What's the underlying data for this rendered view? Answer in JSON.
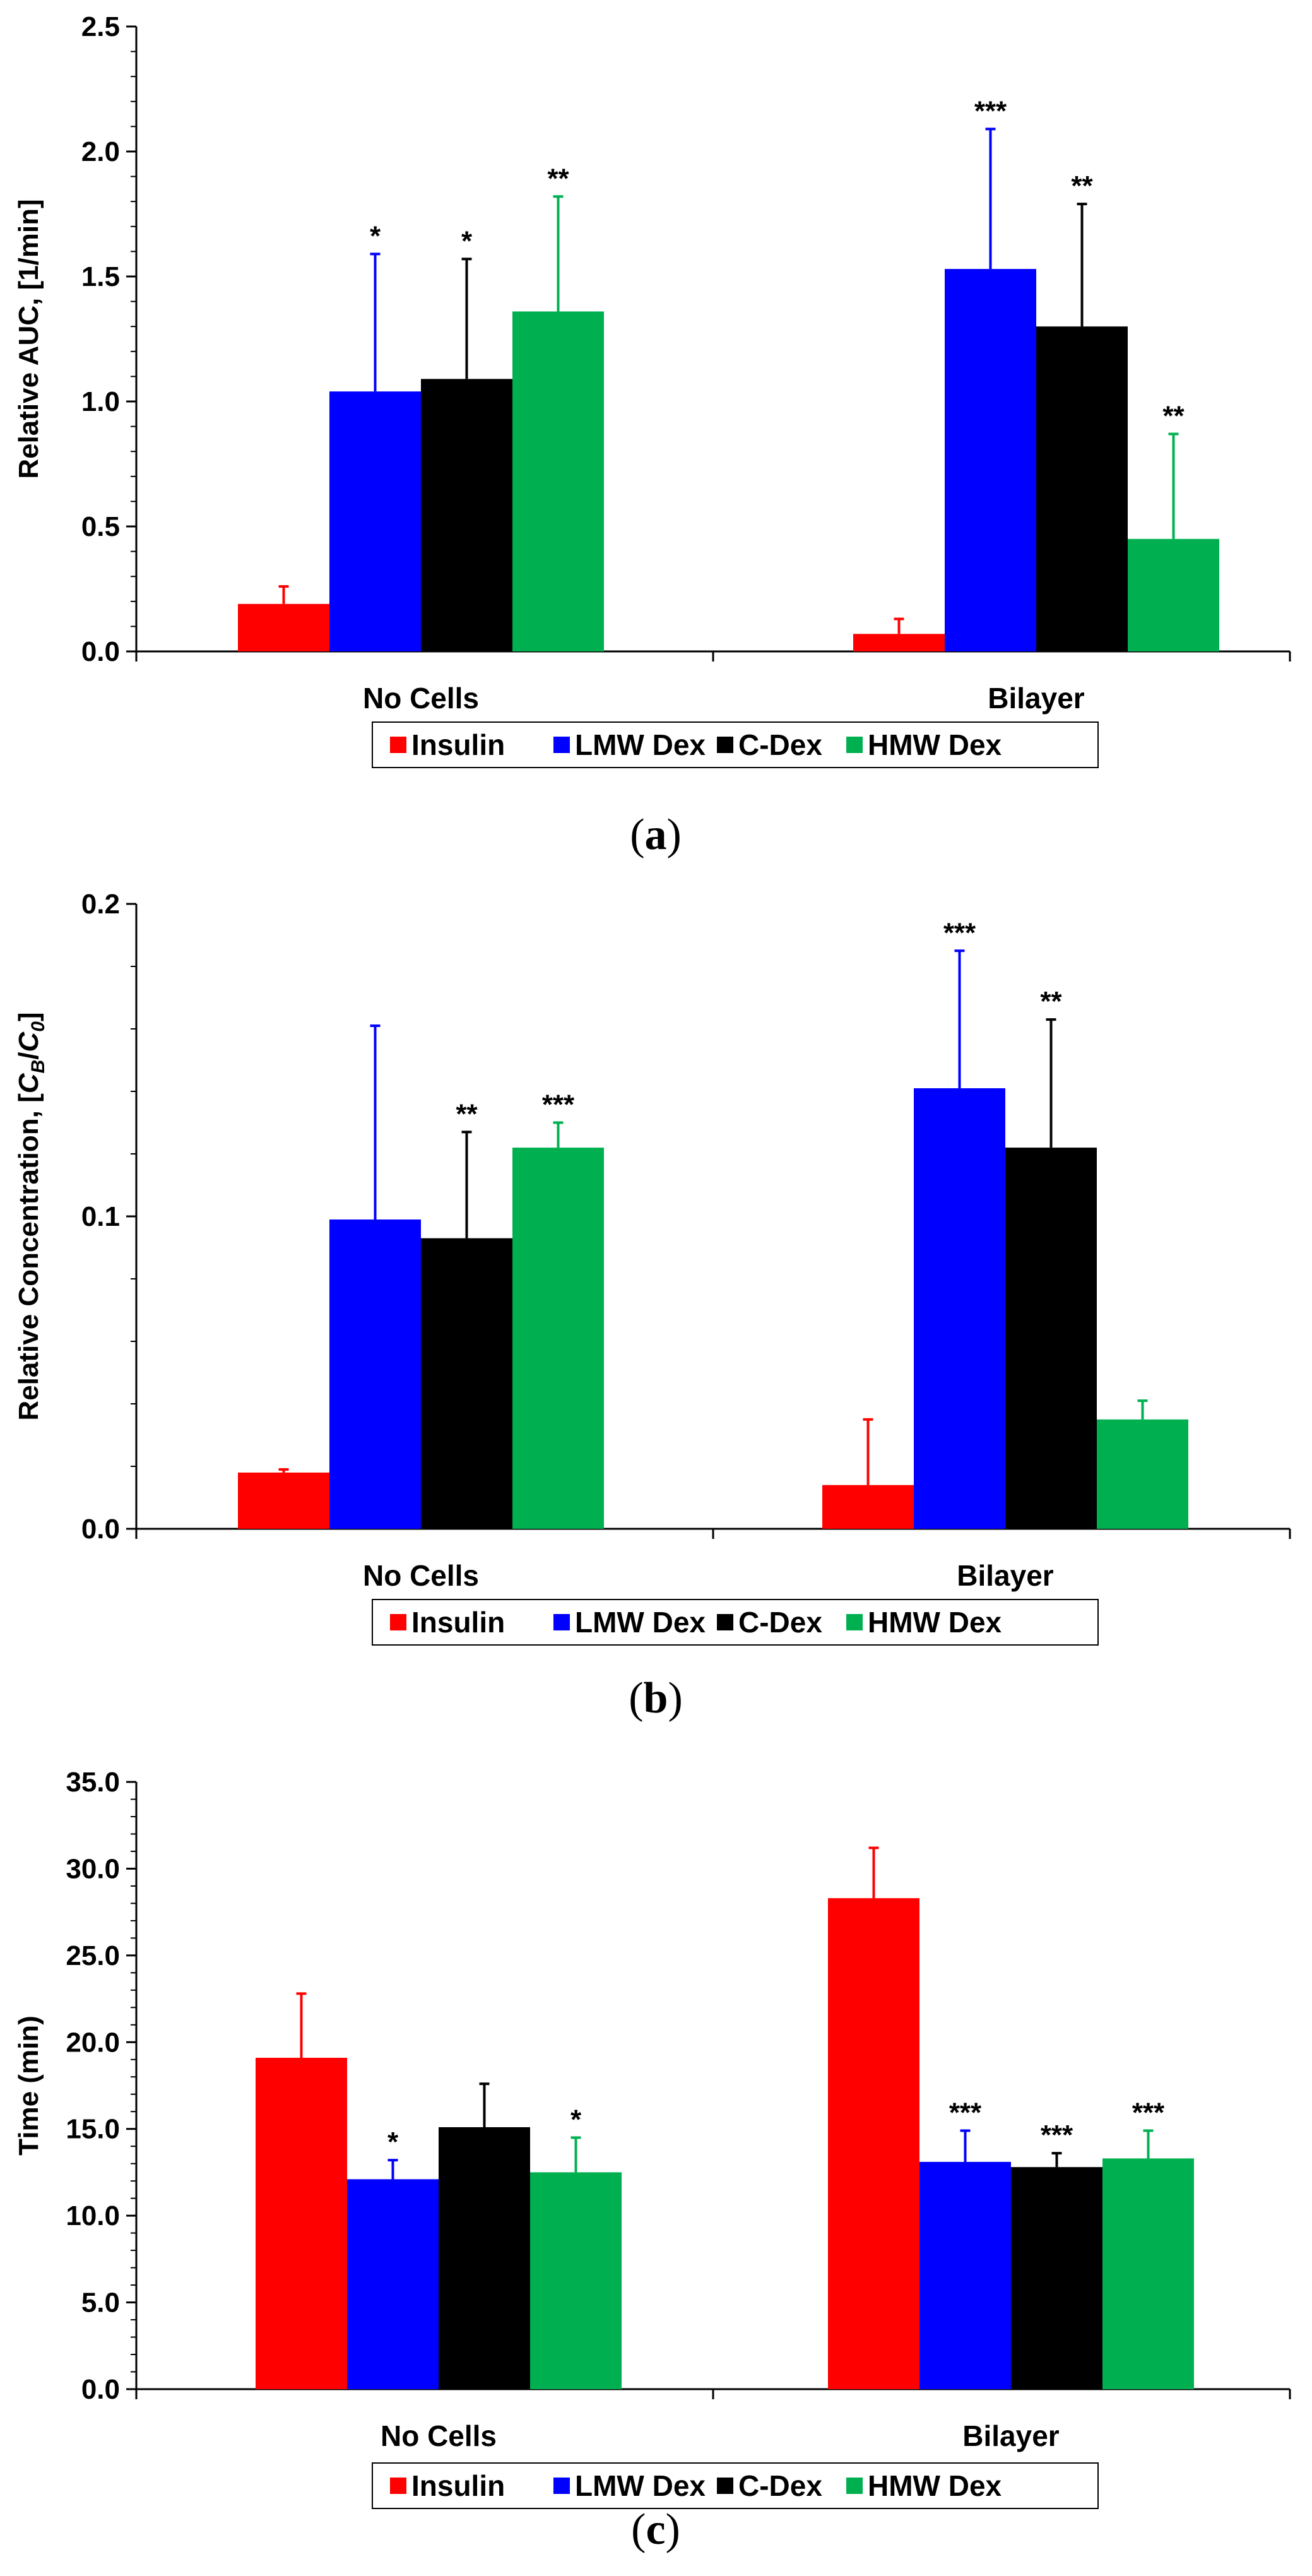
{
  "colors": {
    "Insulin": "#fe0000",
    "LMW Dex": "#0000fe",
    "C-Dex": "#000000",
    "HMW Dex": "#00b050"
  },
  "chart_data": [
    {
      "type": "bar",
      "panel_label": "a",
      "categories": [
        "No Cells",
        "Bilayer"
      ],
      "ylabel": "Relative AUC, [1/min]",
      "ylim": [
        0,
        2.5
      ],
      "yticks": [
        "0.0",
        "0.5",
        "1.0",
        "1.5",
        "2.0",
        "2.5"
      ],
      "legend": "bottom",
      "grid": false,
      "series": [
        {
          "name": "Insulin",
          "values": [
            0.19,
            0.07
          ],
          "errors": [
            0.07,
            0.06
          ],
          "stars": [
            "",
            ""
          ]
        },
        {
          "name": "LMW Dex",
          "values": [
            1.04,
            1.53
          ],
          "errors": [
            0.55,
            0.56
          ],
          "stars": [
            "*",
            "***"
          ]
        },
        {
          "name": "C-Dex",
          "values": [
            1.09,
            1.3
          ],
          "errors": [
            0.48,
            0.49
          ],
          "stars": [
            "*",
            "**"
          ]
        },
        {
          "name": "HMW Dex",
          "values": [
            1.36,
            0.45
          ],
          "errors": [
            0.46,
            0.42
          ],
          "stars": [
            "**",
            "**"
          ]
        }
      ]
    },
    {
      "type": "bar",
      "panel_label": "b",
      "categories": [
        "No Cells",
        "Bilayer"
      ],
      "ylabel": "Relative Concentration, [C_B/C_0]",
      "ylabel_parts": [
        "Relative Concentration, [",
        "C",
        "B",
        "/",
        "C",
        "0",
        "]"
      ],
      "ylim": [
        0,
        0.2
      ],
      "yticks": [
        "0.0",
        "0.1",
        "0.2"
      ],
      "legend": "bottom",
      "grid": false,
      "series": [
        {
          "name": "Insulin",
          "values": [
            0.018,
            0.014
          ],
          "errors": [
            0.001,
            0.021
          ],
          "stars": [
            "",
            ""
          ]
        },
        {
          "name": "LMW Dex",
          "values": [
            0.099,
            0.141
          ],
          "errors": [
            0.062,
            0.044
          ],
          "stars": [
            "",
            "***"
          ]
        },
        {
          "name": "C-Dex",
          "values": [
            0.093,
            0.122
          ],
          "errors": [
            0.034,
            0.041
          ],
          "stars": [
            "**",
            "**"
          ]
        },
        {
          "name": "HMW Dex",
          "values": [
            0.122,
            0.035
          ],
          "errors": [
            0.008,
            0.006
          ],
          "stars": [
            "***",
            ""
          ]
        }
      ]
    },
    {
      "type": "bar",
      "panel_label": "c",
      "categories": [
        "No Cells",
        "Bilayer"
      ],
      "ylabel": "Time (min)",
      "ylim": [
        0,
        35
      ],
      "yticks": [
        "0.0",
        "5.0",
        "10.0",
        "15.0",
        "20.0",
        "25.0",
        "30.0",
        "35.0"
      ],
      "legend": "bottom",
      "grid": false,
      "series": [
        {
          "name": "Insulin",
          "values": [
            19.1,
            28.3
          ],
          "errors": [
            3.7,
            2.9
          ],
          "stars": [
            "",
            ""
          ]
        },
        {
          "name": "LMW Dex",
          "values": [
            12.1,
            13.1
          ],
          "errors": [
            1.1,
            1.8
          ],
          "stars": [
            "*",
            "***"
          ]
        },
        {
          "name": "C-Dex",
          "values": [
            15.1,
            12.8
          ],
          "errors": [
            2.5,
            0.8
          ],
          "stars": [
            "",
            "***"
          ]
        },
        {
          "name": "HMW Dex",
          "values": [
            12.5,
            13.3
          ],
          "errors": [
            2.0,
            1.6
          ],
          "stars": [
            "*",
            "***"
          ]
        }
      ]
    }
  ]
}
